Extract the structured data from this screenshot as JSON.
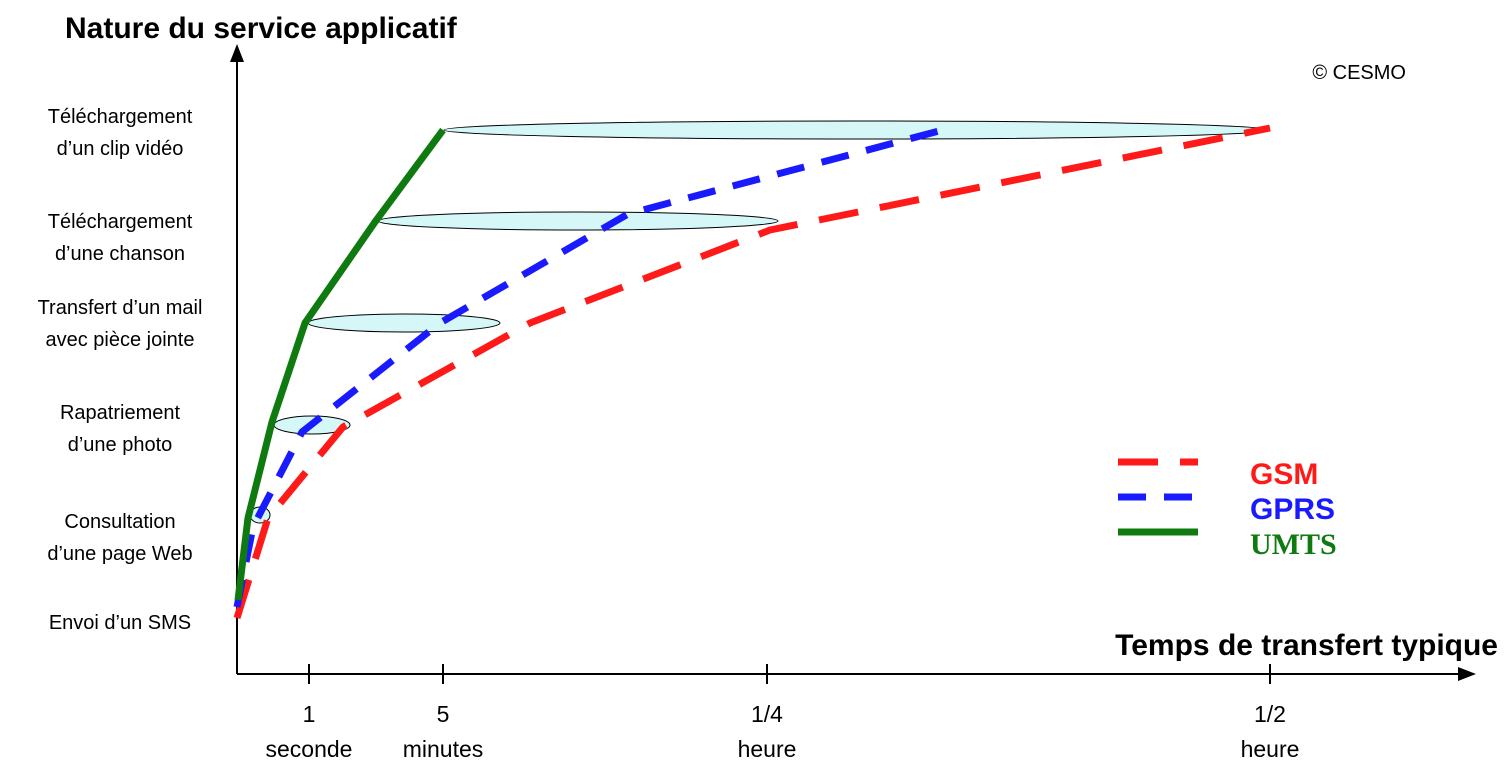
{
  "chart_data": {
    "type": "line",
    "title": "",
    "ylabel": "Nature du service applicatif",
    "xlabel": "Temps de transfert typique",
    "copyright": "© CESMO",
    "y_categories": [
      [
        "Envoi d’un SMS"
      ],
      [
        "Consultation",
        "d’une page Web"
      ],
      [
        "Rapatriement",
        "d’une photo"
      ],
      [
        "Transfert d’un mail",
        "avec pièce jointe"
      ],
      [
        "Téléchargement",
        "d’une chanson"
      ],
      [
        "Téléchargement",
        "d’un clip vidéo"
      ]
    ],
    "x_ticks": [
      {
        "value": "1",
        "unit": "seconde"
      },
      {
        "value": "5",
        "unit": "minutes"
      },
      {
        "value": "1/4",
        "unit": "heure"
      },
      {
        "value": "1/2",
        "unit": "heure"
      }
    ],
    "series": [
      {
        "name": "GSM",
        "color": "#ff1a1a",
        "dash": "long-dash",
        "points": [
          {
            "x": "0",
            "y": "Envoi d’un SMS"
          },
          {
            "x": "proche de 1 seconde",
            "y": "Consultation d’une page Web"
          },
          {
            "x": "entre 1 seconde et 5 minutes",
            "y": "Rapatriement d’une photo"
          },
          {
            "x": "entre 5 minutes et 1/4 heure",
            "y": "Transfert d’un mail avec pièce jointe"
          },
          {
            "x": "1/4 heure",
            "y": "Téléchargement d’une chanson"
          },
          {
            "x": "1/2 heure",
            "y": "Téléchargement d’un clip vidéo"
          }
        ]
      },
      {
        "name": "GPRS",
        "color": "#1a1aff",
        "dash": "dash",
        "points": [
          {
            "x": "0",
            "y": "Envoi d’un SMS"
          },
          {
            "x": "< 1 seconde",
            "y": "Consultation d’une page Web"
          },
          {
            "x": "1 seconde",
            "y": "Rapatriement d’une photo"
          },
          {
            "x": "5 minutes",
            "y": "Transfert d’un mail avec pièce jointe"
          },
          {
            "x": "entre 5 minutes et 1/4 heure",
            "y": "Téléchargement d’une chanson"
          },
          {
            "x": "entre 1/4 et 1/2 heure",
            "y": "Téléchargement d’un clip vidéo"
          }
        ]
      },
      {
        "name": "UMTS",
        "color": "#0f7a0f",
        "dash": "solid",
        "points": [
          {
            "x": "0",
            "y": "Envoi d’un SMS"
          },
          {
            "x": "< 1 seconde",
            "y": "Consultation d’une page Web"
          },
          {
            "x": "< 1 seconde",
            "y": "Rapatriement d’une photo"
          },
          {
            "x": "1 seconde",
            "y": "Transfert d’un mail avec pièce jointe"
          },
          {
            "x": "entre 1 seconde et 5 minutes",
            "y": "Téléchargement d’une chanson"
          },
          {
            "x": "5 minutes",
            "y": "Téléchargement d’un clip vidéo"
          }
        ]
      }
    ],
    "legend": {
      "position": "bottom-right"
    },
    "grid": false
  }
}
